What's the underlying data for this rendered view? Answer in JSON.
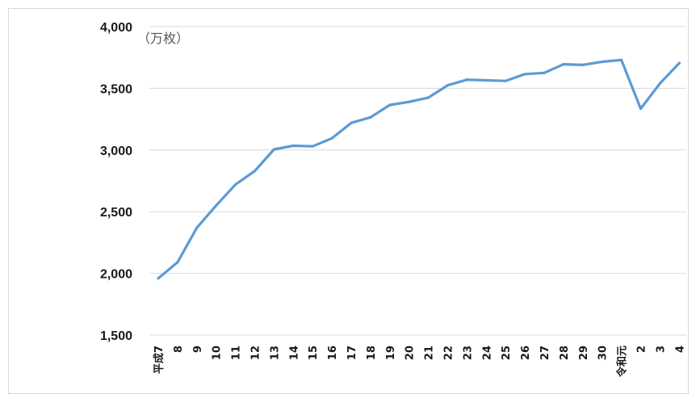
{
  "chart_data": {
    "type": "line",
    "title": "",
    "xlabel": "",
    "ylabel": "",
    "unit_label": "（万枚）",
    "ylim": [
      1500,
      4000
    ],
    "yticks": [
      1500,
      2000,
      2500,
      3000,
      3500,
      4000
    ],
    "ytick_labels": [
      "1,500",
      "2,000",
      "2,500",
      "3,000",
      "3,500",
      "4,000"
    ],
    "grid": true,
    "legend": "none",
    "color": "#5B9BD5",
    "categories": [
      "平成7",
      "8",
      "9",
      "10",
      "11",
      "12",
      "13",
      "14",
      "15",
      "16",
      "17",
      "18",
      "19",
      "20",
      "21",
      "22",
      "23",
      "24",
      "25",
      "26",
      "27",
      "28",
      "29",
      "30",
      "令和元",
      "2",
      "3",
      "4"
    ],
    "series": [
      {
        "values": [
          1960,
          2090,
          2370,
          2550,
          2720,
          2830,
          3005,
          3035,
          3030,
          3095,
          3220,
          3265,
          3365,
          3390,
          3425,
          3525,
          3570,
          3565,
          3560,
          3615,
          3625,
          3695,
          3690,
          3715,
          3730,
          3335,
          3540,
          3705
        ]
      }
    ]
  }
}
